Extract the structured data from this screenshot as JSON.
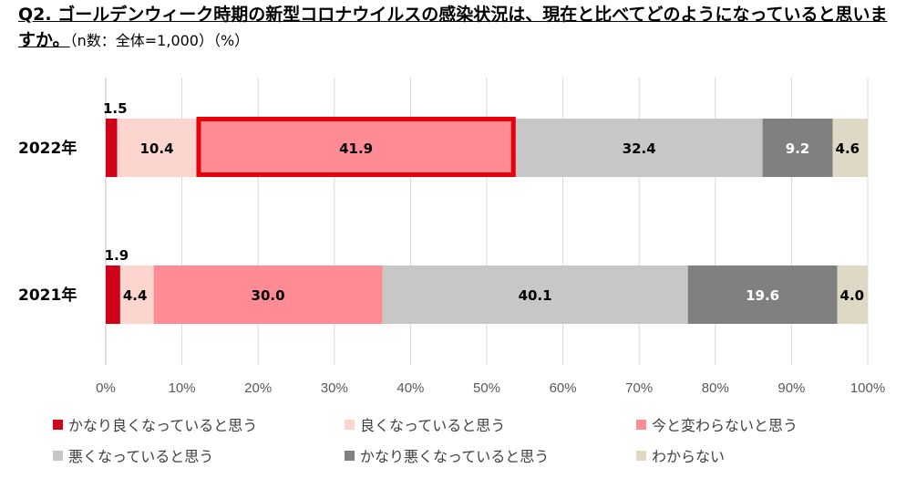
{
  "chart_data": {
    "type": "bar",
    "stacked": true,
    "orientation": "horizontal",
    "title": "Q2. ゴールデンウィーク時期の新型コロナウイルスの感染状況は、現在と比べてどのようになっていると思いますか。",
    "note": "（n数：全体=1,000）（%）",
    "categories": [
      "2022年",
      "2021年"
    ],
    "series": [
      {
        "name": "かなり良くなっていると思う",
        "values": [
          1.5,
          1.9
        ],
        "color": "#d0021b"
      },
      {
        "name": "良くなっていると思う",
        "values": [
          10.4,
          4.4
        ],
        "color": "#fdd5cf"
      },
      {
        "name": "今と変わらないと思う",
        "values": [
          41.9,
          30.0
        ],
        "color": "#ff8c94"
      },
      {
        "name": "悪くなっていると思う",
        "values": [
          32.4,
          40.1
        ],
        "color": "#c7c7c7"
      },
      {
        "name": "かなり悪くなっていると思う",
        "values": [
          9.2,
          19.6
        ],
        "color": "#808080"
      },
      {
        "name": "わからない",
        "values": [
          4.6,
          4.0
        ],
        "color": "#ddd9c4"
      }
    ],
    "xlim": [
      0,
      100
    ],
    "xticks": [
      "0%",
      "10%",
      "20%",
      "30%",
      "40%",
      "50%",
      "60%",
      "70%",
      "80%",
      "90%",
      "100%"
    ],
    "grid": true,
    "legend_position": "bottom",
    "highlight": {
      "category": "2022年",
      "series": "今と変わらないと思う",
      "color": "#e8000b"
    }
  }
}
